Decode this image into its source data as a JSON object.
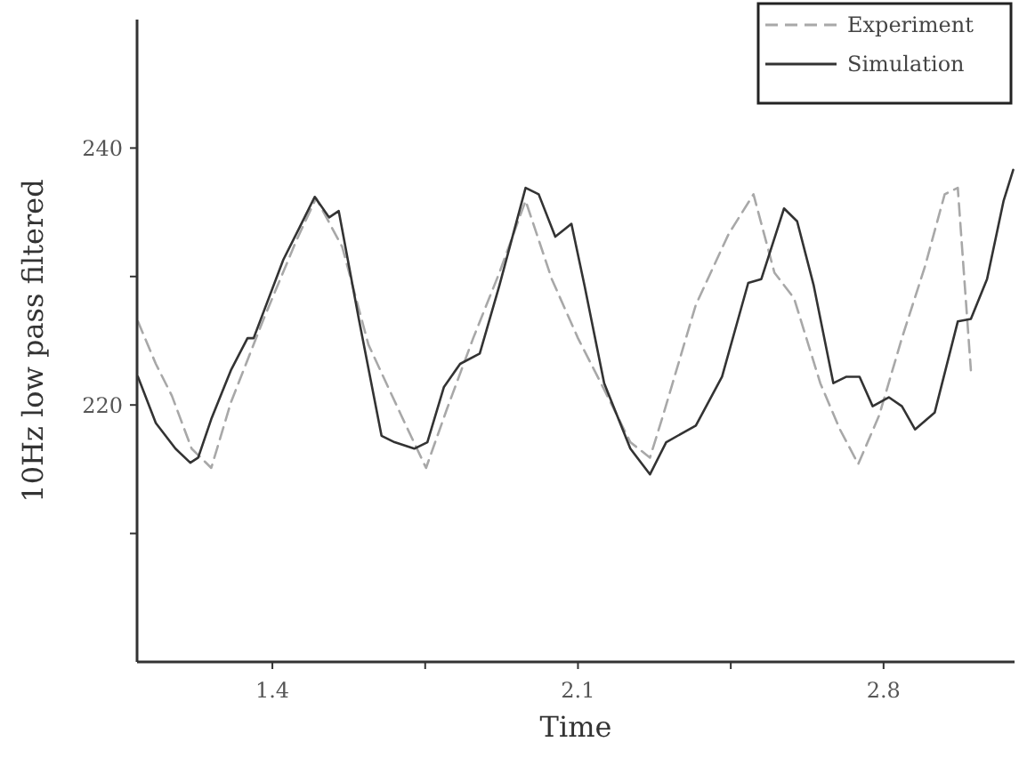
{
  "chart_data": {
    "type": "line",
    "xlabel": "Time",
    "ylabel": "10Hz low pass filtered",
    "xlim": [
      1.09,
      3.1
    ],
    "ylim": [
      200,
      250
    ],
    "xticks": [
      1.4,
      {
        "value": 1.75,
        "label": null
      },
      2.1,
      {
        "value": 2.45,
        "label": null
      },
      2.8
    ],
    "yticks": [
      {
        "value": 210,
        "label": null
      },
      220,
      {
        "value": 230,
        "label": null
      },
      240
    ],
    "grid": false,
    "legend": "top right",
    "series": [
      {
        "name": "Experiment",
        "color": "#a8a8a8",
        "line_style": "dashed",
        "x": [
          1.092,
          1.133,
          1.17,
          1.215,
          1.26,
          1.305,
          1.38,
          1.455,
          1.5,
          1.56,
          1.62,
          1.695,
          1.752,
          1.8,
          1.86,
          1.92,
          1.98,
          2.04,
          2.1,
          2.16,
          2.22,
          2.265,
          2.295,
          2.37,
          2.445,
          2.502,
          2.55,
          2.595,
          2.655,
          2.7,
          2.742,
          2.79,
          2.842,
          2.895,
          2.94,
          2.97,
          3.0
        ],
        "values": [
          226.5,
          223.2,
          220.7,
          216.6,
          215.1,
          220.2,
          226.7,
          232.8,
          236.1,
          232.3,
          224.7,
          219.2,
          215.1,
          219.7,
          225.2,
          230.3,
          235.9,
          229.8,
          225.2,
          221.2,
          217.1,
          215.9,
          219.2,
          227.8,
          233.3,
          236.4,
          230.3,
          228.3,
          221.7,
          218.1,
          215.4,
          219.2,
          225.2,
          230.8,
          236.4,
          236.9,
          222.7
        ]
      },
      {
        "name": "Simulation",
        "color": "#333333",
        "line_style": "solid",
        "x": [
          1.092,
          1.133,
          1.178,
          1.212,
          1.23,
          1.26,
          1.305,
          1.343,
          1.357,
          1.425,
          1.462,
          1.497,
          1.53,
          1.552,
          1.598,
          1.65,
          1.68,
          1.725,
          1.755,
          1.793,
          1.83,
          1.875,
          1.92,
          1.98,
          2.01,
          2.048,
          2.085,
          2.115,
          2.16,
          2.22,
          2.265,
          2.302,
          2.37,
          2.43,
          2.49,
          2.52,
          2.572,
          2.602,
          2.64,
          2.685,
          2.715,
          2.745,
          2.775,
          2.812,
          2.842,
          2.872,
          2.917,
          2.97,
          3.0,
          3.037,
          3.075,
          3.097
        ],
        "values": [
          222.2,
          218.6,
          216.6,
          215.5,
          215.9,
          218.9,
          222.7,
          225.2,
          225.2,
          231.3,
          233.8,
          236.2,
          234.6,
          235.1,
          226.7,
          217.6,
          217.1,
          216.6,
          217.1,
          221.4,
          223.2,
          224.0,
          229.3,
          236.9,
          236.4,
          233.1,
          234.1,
          229.3,
          221.7,
          216.6,
          214.6,
          217.1,
          218.4,
          222.2,
          229.5,
          229.8,
          235.3,
          234.3,
          229.3,
          221.7,
          222.2,
          222.2,
          219.9,
          220.6,
          219.9,
          218.1,
          219.4,
          226.5,
          226.7,
          229.8,
          235.9,
          238.3
        ]
      }
    ]
  }
}
